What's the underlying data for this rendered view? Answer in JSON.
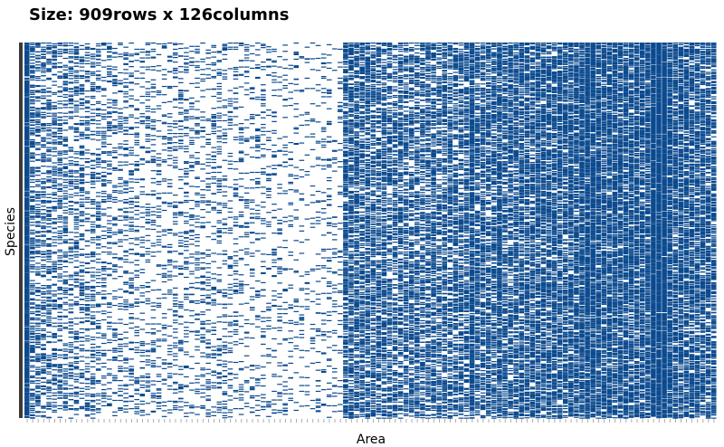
{
  "chart_data": {
    "type": "heatmap",
    "title": "Size: 909rows x 126columns",
    "xlabel": "Area",
    "ylabel": "Species",
    "rows": 909,
    "columns": 126,
    "values": "binary presence/absence (1 = present, 0 = absent)",
    "column_density": [
      1.0,
      0.22,
      0.2,
      0.18,
      0.18,
      0.17,
      0.16,
      0.16,
      0.15,
      0.14,
      0.14,
      0.13,
      0.13,
      0.12,
      0.11,
      0.11,
      0.1,
      0.1,
      0.09,
      0.09,
      0.09,
      0.08,
      0.08,
      0.08,
      0.07,
      0.07,
      0.08,
      0.08,
      0.09,
      0.09,
      0.07,
      0.07,
      0.08,
      0.08,
      0.09,
      0.09,
      0.08,
      0.07,
      0.07,
      0.06,
      0.06,
      0.06,
      0.07,
      0.07,
      0.06,
      0.06,
      0.05,
      0.05,
      0.05,
      0.05,
      0.04,
      0.04,
      0.04,
      0.04,
      0.05,
      0.05,
      0.05,
      0.05,
      0.4,
      0.42,
      0.38,
      0.36,
      0.35,
      0.34,
      0.33,
      0.32,
      0.3,
      0.3,
      0.3,
      0.3,
      0.3,
      0.3,
      0.3,
      0.32,
      0.32,
      0.32,
      0.33,
      0.33,
      0.32,
      0.32,
      0.34,
      0.6,
      0.35,
      0.36,
      0.36,
      0.38,
      0.5,
      0.38,
      0.38,
      0.4,
      0.4,
      0.42,
      0.42,
      0.43,
      0.44,
      0.44,
      0.45,
      0.46,
      0.47,
      0.48,
      0.5,
      0.55,
      0.7,
      0.72,
      0.55,
      0.52,
      0.5,
      0.5,
      0.5,
      0.5,
      0.5,
      0.52,
      0.52,
      0.55,
      0.95,
      0.95,
      0.98,
      0.6,
      0.5,
      0.5,
      0.48,
      0.48,
      0.45,
      0.45,
      0.42,
      0.4,
      0.4
    ],
    "color_present": "#0b4a8f",
    "color_absent": "#ffffff",
    "left_bar_color": "#3a3a3a"
  }
}
